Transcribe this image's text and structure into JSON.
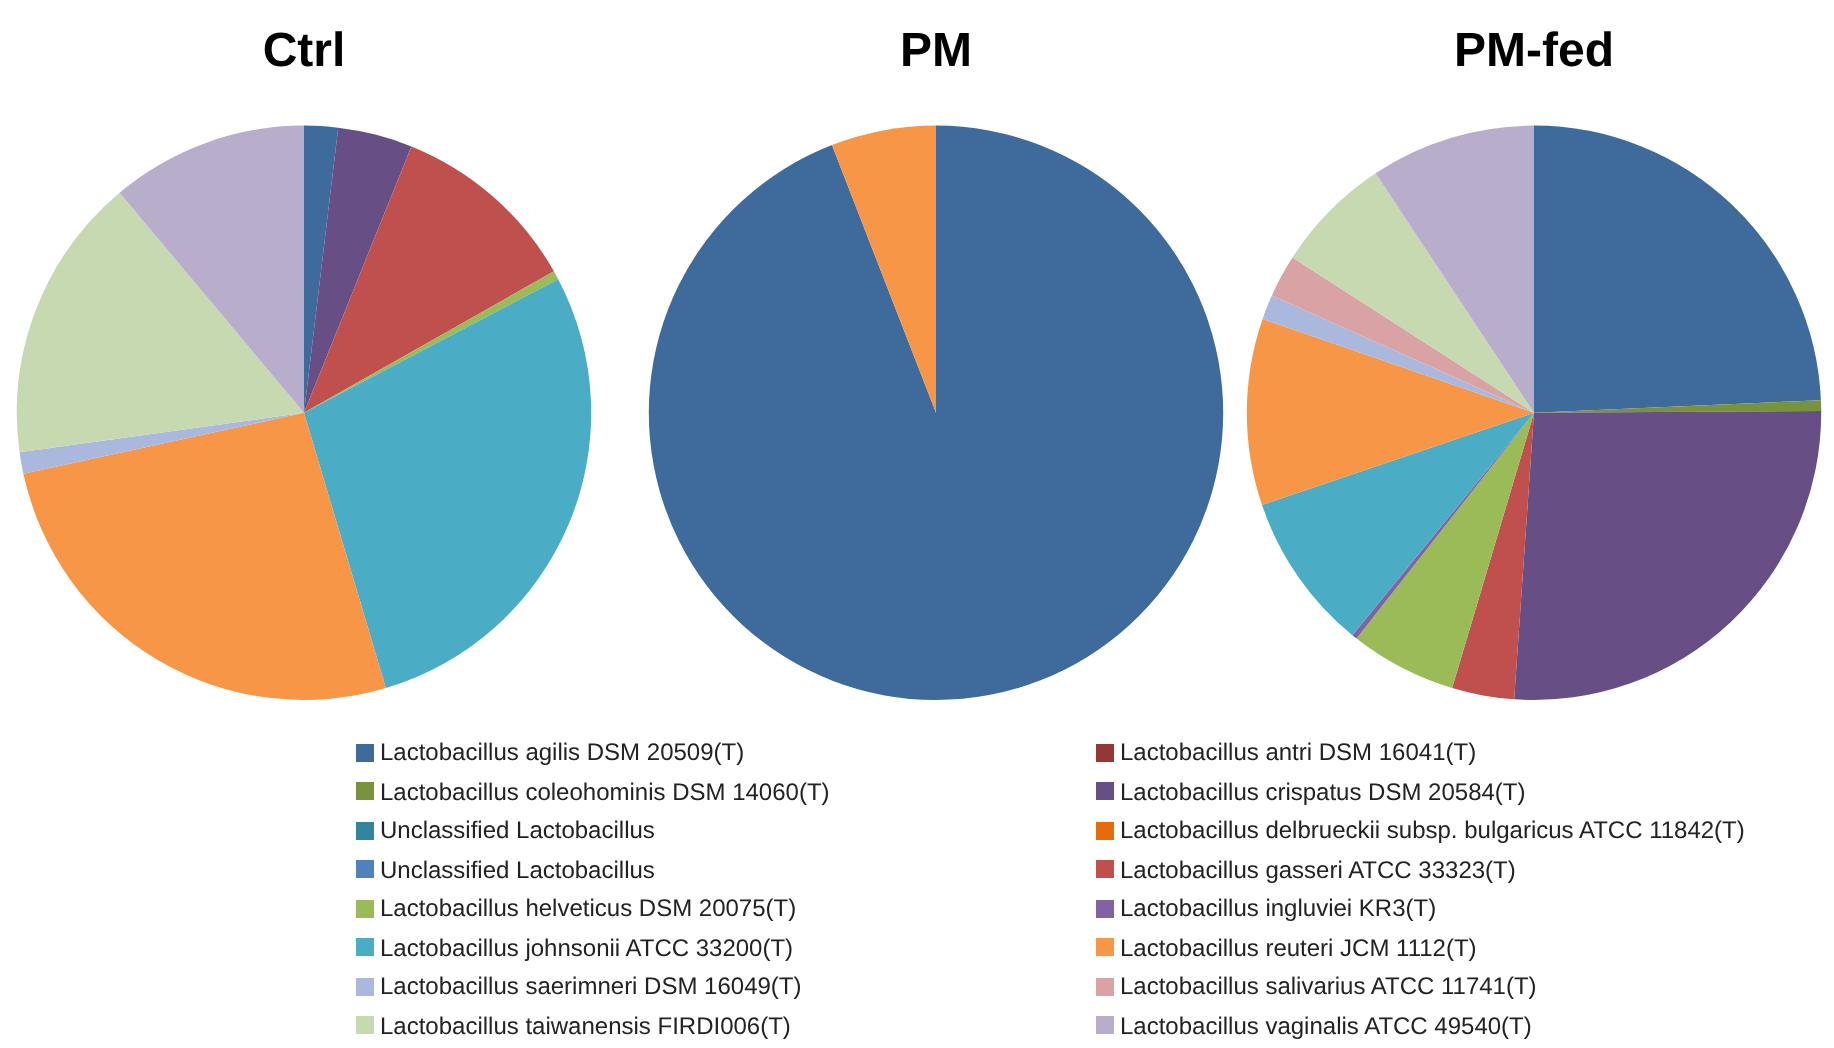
{
  "chart_data": [
    {
      "type": "pie",
      "title": "Ctrl",
      "legend": "bottom",
      "categories": [
        "Lactobacillus agilis DSM 20509(T)",
        "Lactobacillus antri DSM 16041(T)",
        "Lactobacillus coleohominis DSM 14060(T)",
        "Lactobacillus crispatus DSM 20584(T)",
        "Unclassified Lactobacillus",
        "Lactobacillus delbrueckii subsp. bulgaricus ATCC 11842(T)",
        "Unclassified Lactobacillus",
        "Lactobacillus gasseri ATCC 33323(T)",
        "Lactobacillus helveticus DSM 20075(T)",
        "Lactobacillus ingluviei KR3(T)",
        "Lactobacillus johnsonii ATCC 33200(T)",
        "Lactobacillus reuteri JCM 1112(T)",
        "Lactobacillus saerimneri DSM 16049(T)",
        "Lactobacillus salivarius ATCC 11741(T)",
        "Lactobacillus taiwanensis FIRDI006(T)",
        "Lactobacillus vaginalis ATCC 49540(T)"
      ],
      "values": [
        1.9,
        0,
        0,
        4.2,
        0,
        0,
        0,
        10.7,
        0.5,
        0,
        28.1,
        26.2,
        1.2,
        0,
        16.1,
        11.1
      ],
      "colors": [
        "#3e6a9c",
        "#953735",
        "#77933c",
        "#674f86",
        "#31859c",
        "#e46c0a",
        "#4f81bd",
        "#c0504d",
        "#9bbb59",
        "#8064a2",
        "#4bacc6",
        "#f79646",
        "#a9b8dc",
        "#d9a3a6",
        "#c6d9b0",
        "#b8aecb"
      ]
    },
    {
      "type": "pie",
      "title": "PM",
      "categories": [
        null,
        null,
        null,
        null,
        null,
        null,
        null,
        null,
        null,
        null,
        null,
        null,
        null,
        null,
        null,
        null
      ],
      "values": [
        94.1,
        0,
        0,
        0,
        0,
        0,
        0,
        0,
        0,
        0,
        0,
        5.9,
        0,
        0,
        0,
        0
      ],
      "colors": [
        "#3e6a9c",
        "#953735",
        "#77933c",
        "#674f86",
        "#31859c",
        "#e46c0a",
        "#4f81bd",
        "#c0504d",
        "#9bbb59",
        "#8064a2",
        "#4bacc6",
        "#f79646",
        "#a9b8dc",
        "#d9a3a6",
        "#c6d9b0",
        "#b8aecb"
      ]
    },
    {
      "type": "pie",
      "title": "PM-fed",
      "categories": [
        null,
        null,
        null,
        null,
        null,
        null,
        null,
        null,
        null,
        null,
        null,
        null,
        null,
        null,
        null,
        null
      ],
      "values": [
        24.3,
        0,
        0.6,
        26.2,
        0,
        0,
        0,
        3.5,
        6.0,
        0.3,
        8.9,
        10.5,
        1.4,
        2.4,
        6.6,
        9.3
      ],
      "colors": [
        "#3e6a9c",
        "#953735",
        "#77933c",
        "#674f86",
        "#31859c",
        "#e46c0a",
        "#4f81bd",
        "#c0504d",
        "#9bbb59",
        "#8064a2",
        "#4bacc6",
        "#f79646",
        "#a9b8dc",
        "#d9a3a6",
        "#c6d9b0",
        "#b8aecb"
      ]
    }
  ]
}
